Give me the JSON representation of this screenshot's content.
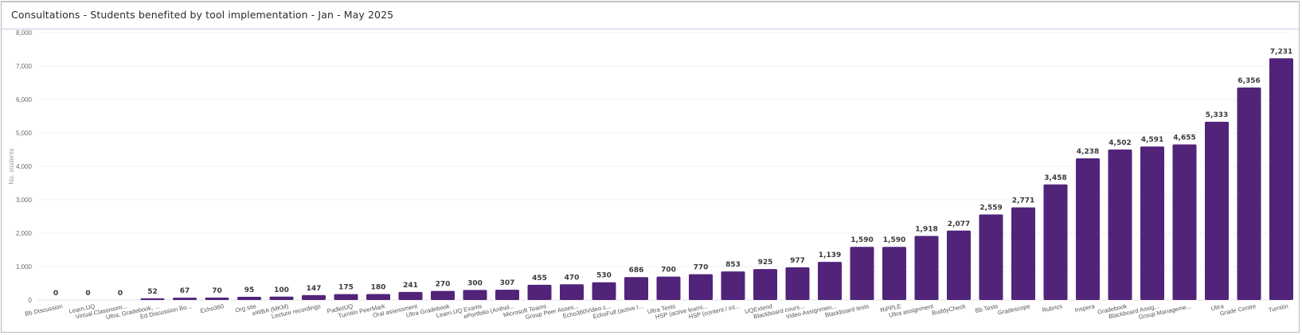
{
  "panel": {
    "title": "Consultations - Students benefited by tool implementation - Jan - May 2025"
  },
  "chart_data": {
    "type": "bar",
    "title": "Consultations - Students benefited by tool implementation - Jan - May 2025",
    "xlabel": "",
    "ylabel": "No. students",
    "ylim": [
      0,
      8000
    ],
    "yticks": [
      "0",
      "1,000",
      "2,000",
      "3,000",
      "4,000",
      "5,000",
      "6,000",
      "7,000",
      "8,000"
    ],
    "grid": true,
    "legend": "none",
    "bar_color": "#51247a",
    "categories": [
      "Bb Discussion",
      "Learn.UQ",
      "Virtual Classroom...",
      "Ultra, Gradebook, ...",
      "Ed Discussion Bo...",
      "Echo360",
      "Org site",
      "eWBA (MKM)",
      "Lecture recordings",
      "PadletUQ",
      "Turnitin PeerMark",
      "Oral assessment",
      "Ultra Gradebook",
      "Learn.UQ Exams",
      "ePortfolio (Anthol...",
      "Microsoft Teams",
      "Group Peer Asses...",
      "Echo360Video c...",
      "EchoFull (active l...",
      "Ultra Tests",
      "HSP (active learni...",
      "HSP (content / int...",
      "UQExtend",
      "Blackboard cours...",
      "Video Assignmen...",
      "Blackboard tests",
      "RiPPLE",
      "Ultra assignment",
      "BuddyCheck",
      "Bb Tests",
      "Gradescope",
      "Rubrics",
      "Inspera",
      "Gradebook",
      "Blackboard Assig...",
      "Group Manageme...",
      "Ultra",
      "Grade Centre",
      "Turnitin"
    ],
    "values": [
      0,
      0,
      0,
      52,
      67,
      70,
      95,
      100,
      147,
      175,
      180,
      241,
      270,
      300,
      307,
      455,
      470,
      530,
      686,
      700,
      770,
      853,
      925,
      977,
      1139,
      1590,
      1590,
      1918,
      2077,
      2559,
      2771,
      3458,
      4238,
      4502,
      4591,
      4655,
      5333,
      6356,
      7231
    ],
    "value_labels": [
      "0",
      "0",
      "0",
      "52",
      "67",
      "70",
      "95",
      "100",
      "147",
      "175",
      "180",
      "241",
      "270",
      "300",
      "307",
      "455",
      "470",
      "530",
      "686",
      "700",
      "770",
      "853",
      "925",
      "977",
      "1,139",
      "1,590",
      "1,590",
      "1,918",
      "2,077",
      "2,559",
      "2,771",
      "3,458",
      "4,238",
      "4,502",
      "4,591",
      "4,655",
      "5,333",
      "6,356",
      "7,231"
    ]
  }
}
